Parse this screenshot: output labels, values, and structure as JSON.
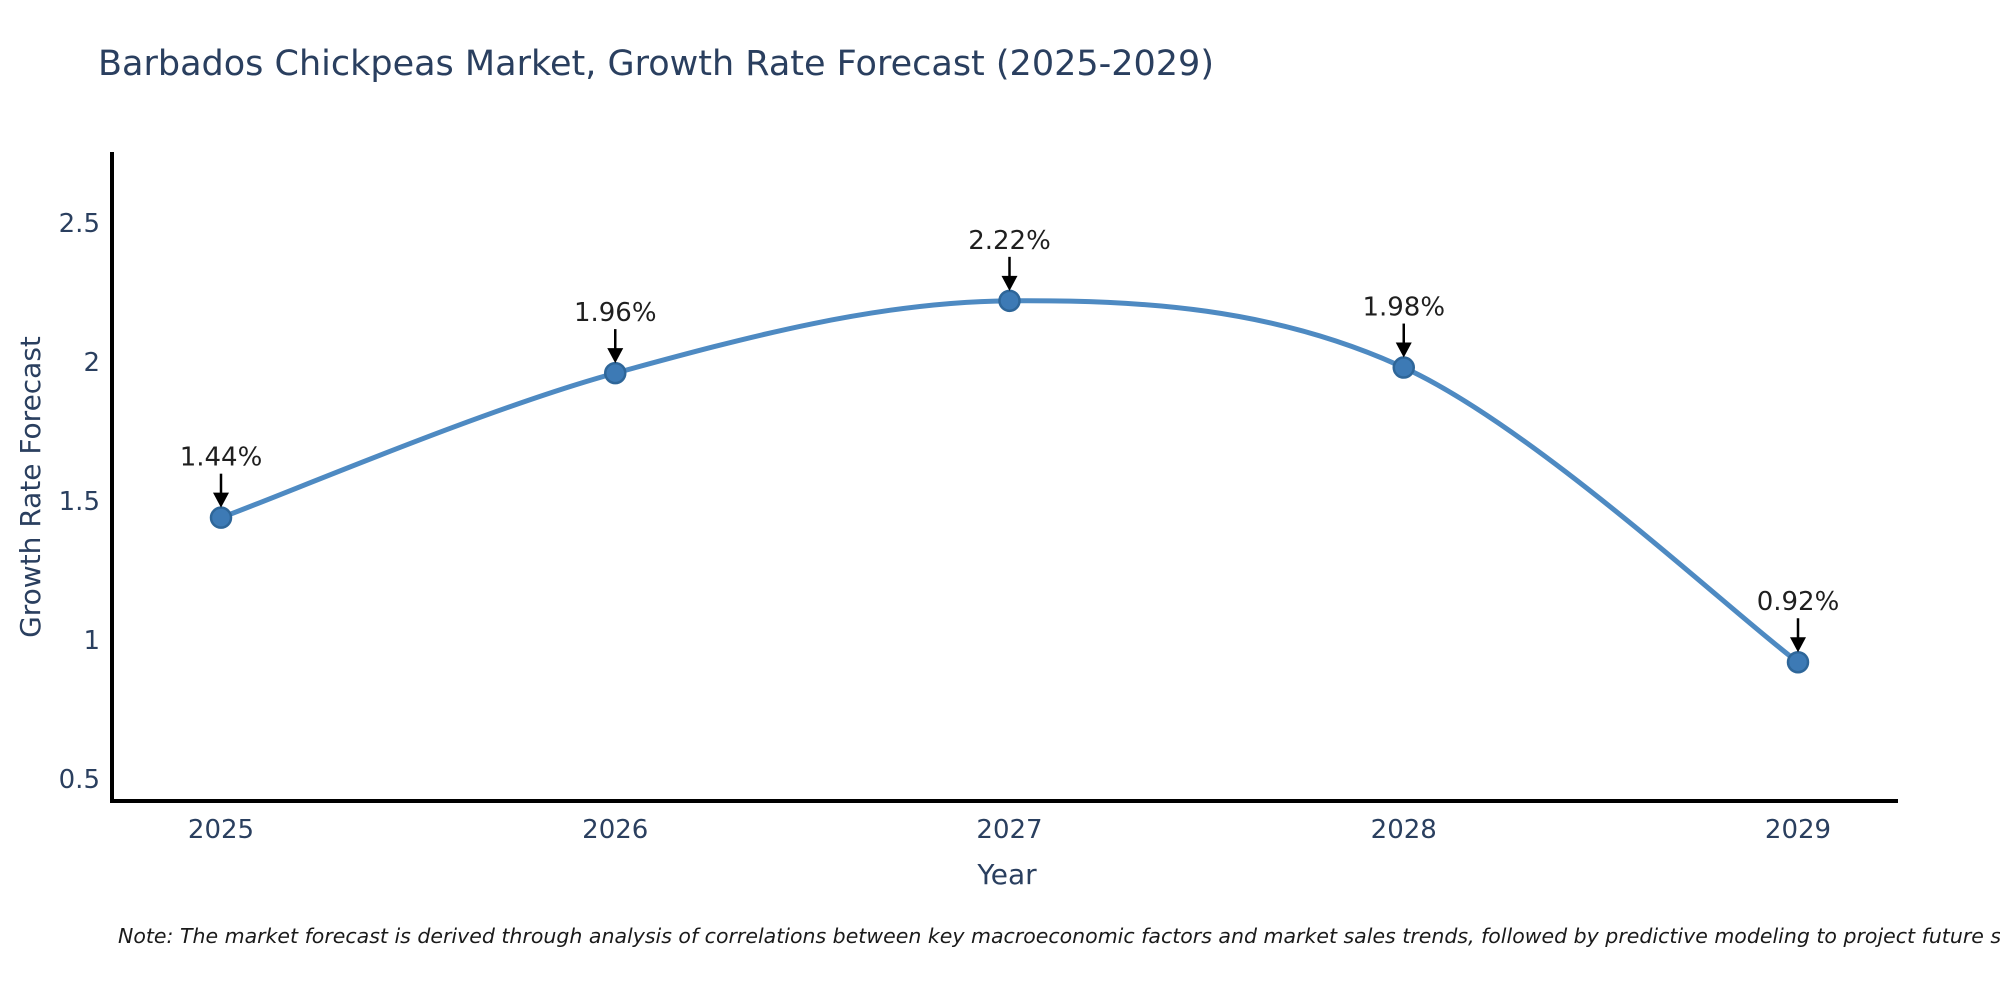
{
  "title": "Barbados Chickpeas Market, Growth Rate Forecast (2025-2029)",
  "note": "Note: The market forecast is derived through analysis of correlations between key macroeconomic factors and market sales trends, followed by predictive modeling to project future sales",
  "chart_data": {
    "type": "line",
    "title": "Barbados Chickpeas Market, Growth Rate Forecast (2025-2029)",
    "categories": [
      "2025",
      "2026",
      "2027",
      "2028",
      "2029"
    ],
    "series": [
      {
        "name": "Growth Rate Forecast",
        "values": [
          1.44,
          1.96,
          2.22,
          1.98,
          0.92
        ]
      }
    ],
    "point_labels": [
      "1.44%",
      "1.96%",
      "2.22%",
      "1.98%",
      "0.92%"
    ],
    "xlabel": "Year",
    "ylabel": "Growth Rate Forecast",
    "y_ticks": [
      0.5,
      1,
      1.5,
      2,
      2.5
    ],
    "ylim": [
      0.42,
      2.75
    ],
    "grid": false,
    "legend_position": "none",
    "line_shape": "spline",
    "annotations_style": "value-above-with-down-arrow"
  },
  "colors": {
    "line": "#4e8ac2",
    "marker_fill": "#3d7ab5",
    "marker_edge": "#2e6699",
    "axis": "#000000",
    "tick_text": "#2a3f5f",
    "axis_title_text": "#2a3f5f",
    "annotation_text": "#1f1f1f",
    "arrow": "#000000",
    "background": "#ffffff"
  }
}
